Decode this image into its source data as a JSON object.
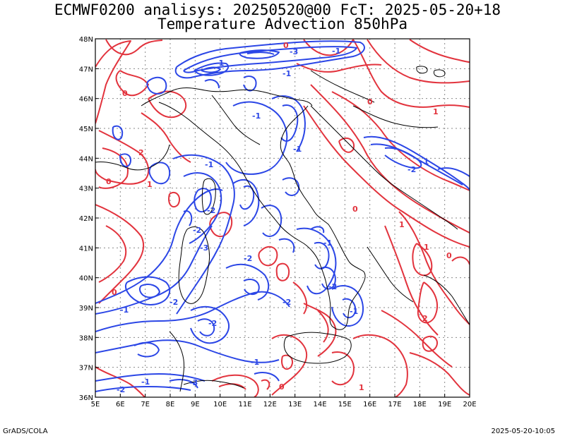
{
  "title_line1": "ECMWF0200 analisys: 20250520@00 FcT: 2025-05-20+18",
  "title_line2": "Temperature Advection 850hPa",
  "footer_left": "GrADS/COLA",
  "footer_right": "2025-05-20-10:05",
  "colors": {
    "positive": "#e2333d",
    "negative": "#2b46e6",
    "coast": "#000000",
    "grid": "#8a8a8a"
  },
  "lon_ticks": [
    "5E",
    "6E",
    "7E",
    "8E",
    "9E",
    "10E",
    "11E",
    "12E",
    "13E",
    "14E",
    "15E",
    "16E",
    "17E",
    "18E",
    "19E",
    "20E"
  ],
  "lat_ticks": [
    "48N",
    "47N",
    "46N",
    "45N",
    "44N",
    "43N",
    "42N",
    "41N",
    "40N",
    "39N",
    "38N",
    "37N",
    "36N"
  ],
  "contour_labels": [
    {
      "text": "-1",
      "sign": "neg"
    },
    {
      "text": "-3",
      "sign": "neg"
    },
    {
      "text": "-1",
      "sign": "neg"
    },
    {
      "text": "-1",
      "sign": "neg"
    },
    {
      "text": "-1",
      "sign": "neg"
    },
    {
      "text": "-1",
      "sign": "neg"
    },
    {
      "text": "-2",
      "sign": "neg"
    },
    {
      "text": "-2",
      "sign": "neg"
    },
    {
      "text": "-3",
      "sign": "neg"
    },
    {
      "text": "-2",
      "sign": "neg"
    },
    {
      "text": "-1",
      "sign": "neg"
    },
    {
      "text": "-2",
      "sign": "neg"
    },
    {
      "text": "-2",
      "sign": "neg"
    },
    {
      "text": "-1",
      "sign": "neg"
    },
    {
      "text": "-2",
      "sign": "neg"
    },
    {
      "text": "-1",
      "sign": "neg"
    },
    {
      "text": "-2",
      "sign": "neg"
    },
    {
      "text": "-1",
      "sign": "neg"
    },
    {
      "text": "-3",
      "sign": "neg"
    },
    {
      "text": "-2",
      "sign": "neg"
    },
    {
      "text": "-1",
      "sign": "neg"
    },
    {
      "text": "-1",
      "sign": "neg"
    },
    {
      "text": "-2",
      "sign": "neg"
    },
    {
      "text": "-1",
      "sign": "neg"
    },
    {
      "text": "0",
      "sign": "pos"
    },
    {
      "text": "0",
      "sign": "pos"
    },
    {
      "text": "2",
      "sign": "pos"
    },
    {
      "text": "1",
      "sign": "pos"
    },
    {
      "text": "0",
      "sign": "pos"
    },
    {
      "text": "0",
      "sign": "pos"
    },
    {
      "text": "1",
      "sign": "pos"
    },
    {
      "text": "2",
      "sign": "pos"
    },
    {
      "text": "0",
      "sign": "pos"
    },
    {
      "text": "1",
      "sign": "pos"
    },
    {
      "text": "1",
      "sign": "pos"
    },
    {
      "text": "0",
      "sign": "pos"
    },
    {
      "text": "1",
      "sign": "pos"
    },
    {
      "text": "0",
      "sign": "pos"
    },
    {
      "text": "0",
      "sign": "pos"
    }
  ]
}
